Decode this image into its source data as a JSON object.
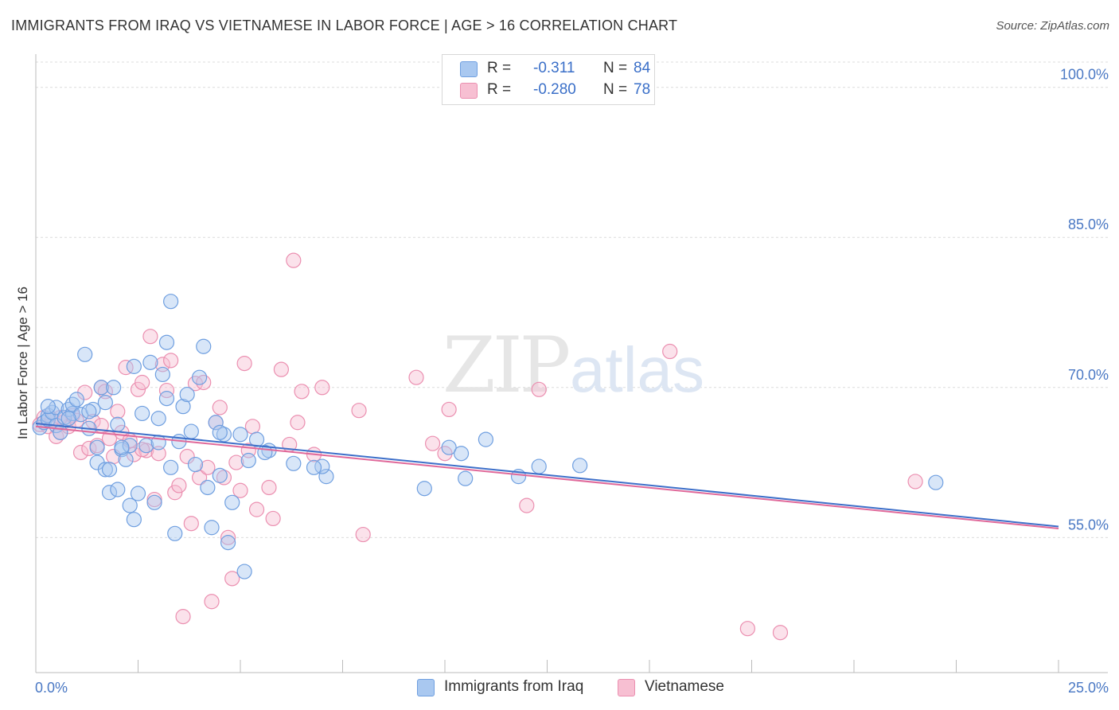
{
  "header": {
    "title": "IMMIGRANTS FROM IRAQ VS VIETNAMESE IN LABOR FORCE | AGE > 16 CORRELATION CHART",
    "source": "Source: ZipAtlas.com"
  },
  "watermark": {
    "zip": "ZIP",
    "atlas": "atlas"
  },
  "legend": {
    "items": [
      {
        "r_label": "R =",
        "r_value": "-0.311",
        "n_label": "N =",
        "n_value": "84"
      },
      {
        "r_label": "R =",
        "r_value": "-0.280",
        "n_label": "N =",
        "n_value": "78"
      }
    ]
  },
  "bottom_legend": {
    "iraq": "Immigrants from Iraq",
    "vietnamese": "Vietnamese"
  },
  "colors": {
    "iraq_fill": "#a9c8f0",
    "iraq_stroke": "#6f9fe0",
    "iraq_line": "#3d6fc9",
    "viet_fill": "#f7bfd2",
    "viet_stroke": "#eb8fb0",
    "viet_line": "#e0699a",
    "axis_text": "#4a78c4",
    "grid": "#dcdcdc"
  },
  "chart_data": {
    "type": "scatter",
    "title": "IMMIGRANTS FROM IRAQ VS VIETNAMESE IN LABOR FORCE | AGE > 16 CORRELATION CHART",
    "xlabel": "",
    "ylabel": "In Labor Force | Age > 16",
    "xlim": [
      0,
      25
    ],
    "ylim": [
      41.5,
      103
    ],
    "x_tick_labels": [
      "0.0%",
      "25.0%"
    ],
    "y_ticks": [
      55,
      70,
      85,
      100
    ],
    "y_tick_labels": [
      "55.0%",
      "70.0%",
      "85.0%",
      "100.0%"
    ],
    "grid": true,
    "legend_placement": "top-center",
    "series": [
      {
        "name": "Immigrants from Iraq",
        "r": -0.311,
        "n": 84,
        "trend": {
          "x": [
            0,
            25
          ],
          "y": [
            66.4,
            56.1
          ]
        },
        "points": [
          [
            0.1,
            66.0
          ],
          [
            0.2,
            66.5
          ],
          [
            0.3,
            67.2
          ],
          [
            0.3,
            66.8
          ],
          [
            0.4,
            67.5
          ],
          [
            0.5,
            66.2
          ],
          [
            0.5,
            68.0
          ],
          [
            0.6,
            65.5
          ],
          [
            0.7,
            67.0
          ],
          [
            0.8,
            67.8
          ],
          [
            0.9,
            67.4
          ],
          [
            0.9,
            68.3
          ],
          [
            1.0,
            68.8
          ],
          [
            1.1,
            67.3
          ],
          [
            1.2,
            73.3
          ],
          [
            1.3,
            65.9
          ],
          [
            1.4,
            67.8
          ],
          [
            1.5,
            64.0
          ],
          [
            1.5,
            62.5
          ],
          [
            1.6,
            70.0
          ],
          [
            1.7,
            61.8
          ],
          [
            1.7,
            68.5
          ],
          [
            1.8,
            59.5
          ],
          [
            1.8,
            61.8
          ],
          [
            1.9,
            70.0
          ],
          [
            2.0,
            59.8
          ],
          [
            2.0,
            66.3
          ],
          [
            2.1,
            63.8
          ],
          [
            2.2,
            62.8
          ],
          [
            2.3,
            64.2
          ],
          [
            2.3,
            58.2
          ],
          [
            2.4,
            72.1
          ],
          [
            2.4,
            56.8
          ],
          [
            2.5,
            59.4
          ],
          [
            2.6,
            67.4
          ],
          [
            2.7,
            64.2
          ],
          [
            2.8,
            72.5
          ],
          [
            2.9,
            58.5
          ],
          [
            3.0,
            66.9
          ],
          [
            3.1,
            71.3
          ],
          [
            3.2,
            68.9
          ],
          [
            3.2,
            74.5
          ],
          [
            3.3,
            78.6
          ],
          [
            3.3,
            62.0
          ],
          [
            3.4,
            55.4
          ],
          [
            3.5,
            64.6
          ],
          [
            3.6,
            68.1
          ],
          [
            3.7,
            69.3
          ],
          [
            3.8,
            65.6
          ],
          [
            3.9,
            62.3
          ],
          [
            4.0,
            71.0
          ],
          [
            4.1,
            74.1
          ],
          [
            4.2,
            60.0
          ],
          [
            4.3,
            56.0
          ],
          [
            4.4,
            66.5
          ],
          [
            4.5,
            61.2
          ],
          [
            4.6,
            65.3
          ],
          [
            4.7,
            54.5
          ],
          [
            4.8,
            58.5
          ],
          [
            5.0,
            65.3
          ],
          [
            5.1,
            51.6
          ],
          [
            5.2,
            62.7
          ],
          [
            5.4,
            64.8
          ],
          [
            5.7,
            63.7
          ],
          [
            6.3,
            62.4
          ],
          [
            7.1,
            61.1
          ],
          [
            7.0,
            62.1
          ],
          [
            9.5,
            59.9
          ],
          [
            10.1,
            64.0
          ],
          [
            10.4,
            63.4
          ],
          [
            10.5,
            60.9
          ],
          [
            11.0,
            64.8
          ],
          [
            11.8,
            61.1
          ],
          [
            12.3,
            62.1
          ],
          [
            13.3,
            62.2
          ],
          [
            22.0,
            60.5
          ],
          [
            0.3,
            68.1
          ],
          [
            0.8,
            66.9
          ],
          [
            1.3,
            67.6
          ],
          [
            2.1,
            64.0
          ],
          [
            3.0,
            64.5
          ],
          [
            4.5,
            65.5
          ],
          [
            5.6,
            63.5
          ],
          [
            6.8,
            62.0
          ]
        ]
      },
      {
        "name": "Vietnamese",
        "r": -0.28,
        "n": 78,
        "trend": {
          "x": [
            0,
            25
          ],
          "y": [
            66.1,
            55.9
          ]
        },
        "points": [
          [
            0.1,
            66.3
          ],
          [
            0.2,
            67.0
          ],
          [
            0.3,
            66.1
          ],
          [
            0.4,
            66.8
          ],
          [
            0.5,
            65.1
          ],
          [
            0.6,
            65.5
          ],
          [
            0.7,
            66.6
          ],
          [
            0.8,
            66.1
          ],
          [
            0.9,
            67.2
          ],
          [
            1.0,
            66.7
          ],
          [
            1.1,
            63.5
          ],
          [
            1.2,
            69.5
          ],
          [
            1.3,
            63.9
          ],
          [
            1.4,
            66.6
          ],
          [
            1.5,
            64.2
          ],
          [
            1.6,
            70.0
          ],
          [
            1.7,
            69.6
          ],
          [
            1.8,
            64.9
          ],
          [
            1.9,
            63.1
          ],
          [
            2.0,
            67.6
          ],
          [
            2.1,
            65.5
          ],
          [
            2.2,
            72.0
          ],
          [
            2.3,
            64.7
          ],
          [
            2.4,
            63.3
          ],
          [
            2.5,
            69.8
          ],
          [
            2.6,
            70.5
          ],
          [
            2.7,
            63.7
          ],
          [
            2.8,
            75.1
          ],
          [
            2.9,
            58.8
          ],
          [
            3.0,
            63.4
          ],
          [
            3.1,
            72.3
          ],
          [
            3.2,
            69.7
          ],
          [
            3.3,
            72.7
          ],
          [
            3.4,
            59.5
          ],
          [
            3.5,
            60.2
          ],
          [
            3.6,
            47.1
          ],
          [
            3.7,
            63.1
          ],
          [
            3.8,
            56.4
          ],
          [
            3.9,
            70.4
          ],
          [
            4.0,
            61.0
          ],
          [
            4.1,
            70.5
          ],
          [
            4.3,
            48.6
          ],
          [
            4.4,
            66.5
          ],
          [
            4.5,
            68.0
          ],
          [
            4.6,
            61.0
          ],
          [
            4.7,
            55.0
          ],
          [
            4.8,
            50.9
          ],
          [
            4.9,
            62.5
          ],
          [
            5.0,
            59.7
          ],
          [
            5.1,
            72.4
          ],
          [
            5.2,
            63.7
          ],
          [
            5.3,
            66.1
          ],
          [
            5.4,
            57.8
          ],
          [
            5.7,
            60.0
          ],
          [
            5.8,
            56.9
          ],
          [
            6.0,
            71.8
          ],
          [
            6.2,
            64.3
          ],
          [
            6.3,
            82.7
          ],
          [
            6.4,
            66.5
          ],
          [
            6.5,
            69.6
          ],
          [
            6.8,
            63.3
          ],
          [
            7.0,
            70.0
          ],
          [
            8.0,
            55.3
          ],
          [
            7.9,
            67.7
          ],
          [
            9.3,
            71.0
          ],
          [
            9.7,
            64.4
          ],
          [
            10.1,
            67.8
          ],
          [
            10.0,
            63.4
          ],
          [
            12.0,
            58.2
          ],
          [
            12.3,
            69.8
          ],
          [
            15.5,
            73.6
          ],
          [
            17.4,
            45.9
          ],
          [
            18.2,
            45.5
          ],
          [
            21.5,
            60.6
          ],
          [
            0.6,
            67.0
          ],
          [
            1.6,
            66.2
          ],
          [
            2.6,
            63.8
          ],
          [
            4.2,
            62.0
          ]
        ]
      }
    ]
  }
}
